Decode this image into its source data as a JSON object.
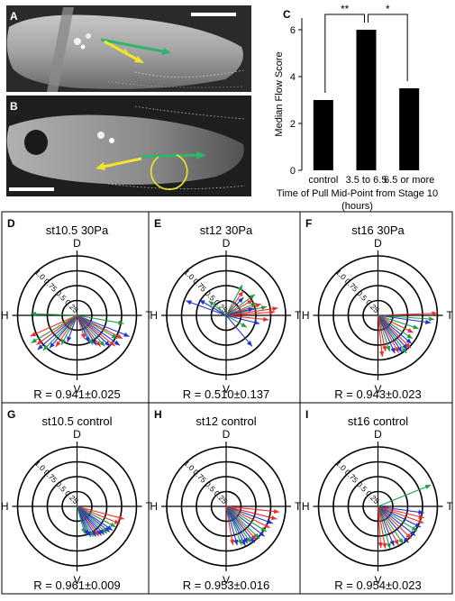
{
  "panel_labels": {
    "A": "A",
    "B": "B",
    "C": "C",
    "D": "D",
    "E": "E",
    "F": "F",
    "G": "G",
    "H": "H",
    "I": "I"
  },
  "chart_data": {
    "type": "bar",
    "panel": "C",
    "categories": [
      "control",
      "3.5 to 6.5",
      "6.5 or more"
    ],
    "values": [
      3,
      6,
      3.5
    ],
    "ylabel": "Median Flow Score",
    "xlabel": "Time of Pull Mid-Point from Stage 10 (hours)",
    "xlabel_lines": [
      "Time of Pull Mid-Point from Stage 10",
      "(hours)"
    ],
    "ylim": [
      0,
      6.5
    ],
    "yticks": [
      0,
      2,
      4,
      6
    ],
    "significance": [
      {
        "from": 0,
        "to": 1,
        "label": "**"
      },
      {
        "from": 1,
        "to": 2,
        "label": "*"
      }
    ],
    "bar_color": "#000000"
  },
  "polar_axis_labels": {
    "top": "D",
    "bottom": "V",
    "left": "H",
    "right": "T"
  },
  "ring_labels": [
    "0.25",
    "0.5",
    "0.75",
    "1.0"
  ],
  "arrow_colors": {
    "red": "#e8312a",
    "green": "#1f9a4a",
    "blue": "#2233cc"
  },
  "polar_panels": [
    {
      "label": "D",
      "title": "st10.5 30Pa",
      "stat": "R = 0.941±0.025",
      "arrows": [
        {
          "a": -10,
          "r": 0.8,
          "c": "green"
        },
        {
          "a": -22,
          "r": 0.95,
          "c": "blue"
        },
        {
          "a": -27,
          "r": 0.86,
          "c": "red"
        },
        {
          "a": -30,
          "r": 0.78,
          "c": "green"
        },
        {
          "a": -35,
          "r": 0.88,
          "c": "blue"
        },
        {
          "a": -39,
          "r": 0.82,
          "c": "red"
        },
        {
          "a": -43,
          "r": 0.76,
          "c": "blue"
        },
        {
          "a": -48,
          "r": 0.7,
          "c": "green"
        },
        {
          "a": -53,
          "r": 0.66,
          "c": "red"
        },
        {
          "a": -57,
          "r": 0.6,
          "c": "blue"
        },
        {
          "a": -62,
          "r": 0.56,
          "c": "green"
        },
        {
          "a": -66,
          "r": 0.5,
          "c": "blue"
        },
        {
          "a": -72,
          "r": 0.42,
          "c": "red"
        },
        {
          "a": -110,
          "r": 0.48,
          "c": "blue"
        },
        {
          "a": -118,
          "r": 0.56,
          "c": "green"
        },
        {
          "a": -124,
          "r": 0.64,
          "c": "red"
        },
        {
          "a": -130,
          "r": 0.72,
          "c": "blue"
        },
        {
          "a": -134,
          "r": 0.82,
          "c": "green"
        },
        {
          "a": -139,
          "r": 0.88,
          "c": "blue"
        },
        {
          "a": -144,
          "r": 0.84,
          "c": "red"
        },
        {
          "a": -149,
          "r": 0.9,
          "c": "green"
        },
        {
          "a": -156,
          "r": 0.86,
          "c": "red"
        },
        {
          "a": 178,
          "r": 0.78,
          "c": "green"
        }
      ]
    },
    {
      "label": "E",
      "title": "st12 30Pa",
      "stat": "R = 0.510±0.137",
      "arrows": [
        {
          "a": 8,
          "r": 0.88,
          "c": "red"
        },
        {
          "a": 4,
          "r": 0.82,
          "c": "red"
        },
        {
          "a": 12,
          "r": 0.7,
          "c": "green"
        },
        {
          "a": 18,
          "r": 0.62,
          "c": "red"
        },
        {
          "a": 22,
          "r": 0.55,
          "c": "green"
        },
        {
          "a": 14,
          "r": 0.48,
          "c": "blue"
        },
        {
          "a": 30,
          "r": 0.52,
          "c": "red"
        },
        {
          "a": 36,
          "r": 0.6,
          "c": "green"
        },
        {
          "a": 46,
          "r": 0.42,
          "c": "blue"
        },
        {
          "a": 55,
          "r": 0.5,
          "c": "red"
        },
        {
          "a": 62,
          "r": 0.58,
          "c": "green"
        },
        {
          "a": -6,
          "r": 0.72,
          "c": "red"
        },
        {
          "a": -14,
          "r": 0.58,
          "c": "blue"
        },
        {
          "a": -30,
          "r": 0.4,
          "c": "green"
        },
        {
          "a": -50,
          "r": 0.68,
          "c": "blue"
        },
        {
          "a": 150,
          "r": 0.52,
          "c": "blue"
        },
        {
          "a": 160,
          "r": 0.72,
          "c": "blue"
        },
        {
          "a": 140,
          "r": 0.38,
          "c": "green"
        }
      ]
    },
    {
      "label": "F",
      "title": "st16 30Pa",
      "stat": "R = 0.943±0.023",
      "arrows": [
        {
          "a": 2,
          "r": 1.0,
          "c": "red"
        },
        {
          "a": -4,
          "r": 0.95,
          "c": "green"
        },
        {
          "a": -8,
          "r": 0.9,
          "c": "blue"
        },
        {
          "a": -18,
          "r": 0.72,
          "c": "green"
        },
        {
          "a": -26,
          "r": 0.66,
          "c": "red"
        },
        {
          "a": -34,
          "r": 0.7,
          "c": "green"
        },
        {
          "a": -40,
          "r": 0.74,
          "c": "blue"
        },
        {
          "a": -45,
          "r": 0.78,
          "c": "red"
        },
        {
          "a": -49,
          "r": 0.76,
          "c": "blue"
        },
        {
          "a": -53,
          "r": 0.8,
          "c": "green"
        },
        {
          "a": -57,
          "r": 0.74,
          "c": "blue"
        },
        {
          "a": -61,
          "r": 0.72,
          "c": "red"
        },
        {
          "a": -66,
          "r": 0.7,
          "c": "blue"
        },
        {
          "a": -72,
          "r": 0.64,
          "c": "green"
        },
        {
          "a": -78,
          "r": 0.62,
          "c": "red"
        },
        {
          "a": -84,
          "r": 0.7,
          "c": "red"
        }
      ]
    },
    {
      "label": "G",
      "title": "st10.5 control",
      "stat": "R = 0.961±0.009",
      "arrows": [
        {
          "a": -15,
          "r": 0.82,
          "c": "red"
        },
        {
          "a": -22,
          "r": 0.78,
          "c": "red"
        },
        {
          "a": -28,
          "r": 0.74,
          "c": "green"
        },
        {
          "a": -34,
          "r": 0.72,
          "c": "blue"
        },
        {
          "a": -38,
          "r": 0.7,
          "c": "blue"
        },
        {
          "a": -42,
          "r": 0.68,
          "c": "green"
        },
        {
          "a": -46,
          "r": 0.66,
          "c": "blue"
        },
        {
          "a": -50,
          "r": 0.64,
          "c": "blue"
        },
        {
          "a": -54,
          "r": 0.62,
          "c": "red"
        },
        {
          "a": -58,
          "r": 0.6,
          "c": "blue"
        },
        {
          "a": -62,
          "r": 0.58,
          "c": "green"
        },
        {
          "a": -66,
          "r": 0.56,
          "c": "blue"
        },
        {
          "a": -70,
          "r": 0.52,
          "c": "blue"
        },
        {
          "a": -74,
          "r": 0.48,
          "c": "green"
        }
      ]
    },
    {
      "label": "H",
      "title": "st12 control",
      "stat": "R = 0.953±0.016",
      "arrows": [
        {
          "a": -6,
          "r": 0.9,
          "c": "red"
        },
        {
          "a": -14,
          "r": 0.88,
          "c": "red"
        },
        {
          "a": -20,
          "r": 0.84,
          "c": "blue"
        },
        {
          "a": -26,
          "r": 0.82,
          "c": "red"
        },
        {
          "a": -32,
          "r": 0.8,
          "c": "green"
        },
        {
          "a": -38,
          "r": 0.82,
          "c": "blue"
        },
        {
          "a": -44,
          "r": 0.78,
          "c": "green"
        },
        {
          "a": -48,
          "r": 0.76,
          "c": "red"
        },
        {
          "a": -52,
          "r": 0.78,
          "c": "blue"
        },
        {
          "a": -56,
          "r": 0.74,
          "c": "green"
        },
        {
          "a": -60,
          "r": 0.72,
          "c": "blue"
        },
        {
          "a": -64,
          "r": 0.74,
          "c": "blue"
        },
        {
          "a": -68,
          "r": 0.7,
          "c": "green"
        },
        {
          "a": -74,
          "r": 0.68,
          "c": "blue"
        },
        {
          "a": -80,
          "r": 0.66,
          "c": "red"
        }
      ]
    },
    {
      "label": "I",
      "title": "st16 control",
      "stat": "R = 0.954±0.023",
      "arrows": [
        {
          "a": 22,
          "r": 0.96,
          "c": "green"
        },
        {
          "a": -8,
          "r": 0.78,
          "c": "blue"
        },
        {
          "a": -14,
          "r": 0.8,
          "c": "red"
        },
        {
          "a": -20,
          "r": 0.82,
          "c": "red"
        },
        {
          "a": -26,
          "r": 0.8,
          "c": "blue"
        },
        {
          "a": -32,
          "r": 0.78,
          "c": "green"
        },
        {
          "a": -38,
          "r": 0.8,
          "c": "blue"
        },
        {
          "a": -44,
          "r": 0.78,
          "c": "red"
        },
        {
          "a": -50,
          "r": 0.8,
          "c": "blue"
        },
        {
          "a": -56,
          "r": 0.76,
          "c": "green"
        },
        {
          "a": -62,
          "r": 0.74,
          "c": "red"
        },
        {
          "a": -68,
          "r": 0.72,
          "c": "blue"
        },
        {
          "a": -74,
          "r": 0.74,
          "c": "green"
        },
        {
          "a": -80,
          "r": 0.72,
          "c": "red"
        },
        {
          "a": -86,
          "r": 0.7,
          "c": "red"
        }
      ]
    }
  ]
}
